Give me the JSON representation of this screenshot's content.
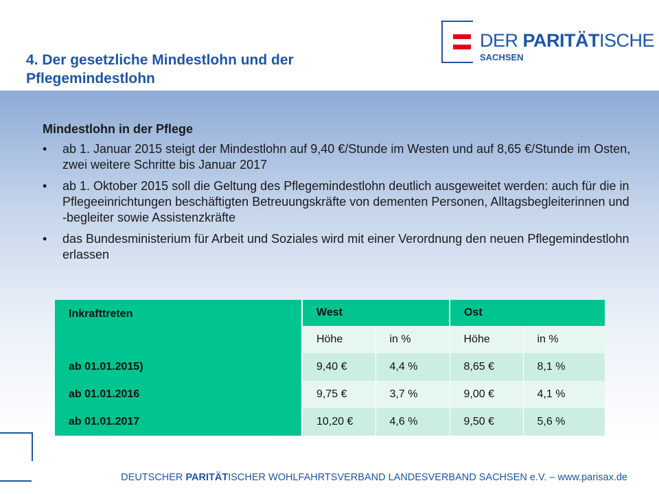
{
  "header": {
    "title_line1": "4. Der gesetzliche Mindestlohn und der",
    "title_line2": "Pflegemindestlohn"
  },
  "logo": {
    "name_regular": "DER ",
    "name_bold": "PARITÄT",
    "name_rest": "ISCHE",
    "sub": "SACHSEN",
    "accent_color": "#e3001b",
    "brand_color": "#1e55a4"
  },
  "content": {
    "subheading": "Mindestlohn in der Pflege",
    "bullets": [
      "ab 1. Januar 2015 steigt der Mindestlohn auf 9,40 €/Stunde im Westen und auf 8,65 €/Stunde im Osten, zwei weitere Schritte bis Januar 2017",
      "ab 1. Oktober 2015 soll die Geltung des Pflegemindestlohn deutlich ausgeweitet werden: auch für die in Pflegeeinrichtungen beschäftigten Betreuungskräfte von dementen Personen, Alltagsbegleiterinnen und -begleiter sowie Assistenzkräfte",
      "das Bundesministerium für Arbeit und Soziales wird mit einer Verordnung den neuen Pflegemindestlohn erlassen"
    ],
    "bullet_char": "•"
  },
  "table": {
    "header": {
      "col_label": "Inkrafttreten",
      "west": "West",
      "ost": "Ost",
      "sub": [
        "Höhe",
        "in %",
        "Höhe",
        "in %"
      ]
    },
    "rows": [
      {
        "label": "ab 01.01.2015)",
        "cells": [
          "9,40 €",
          "4,4 %",
          "8,65 €",
          "8,1 %"
        ]
      },
      {
        "label": "ab 01.01.2016",
        "cells": [
          "9,75 €",
          "3,7 %",
          "9,00 €",
          "4,1 %"
        ]
      },
      {
        "label": "ab 01.01.2017",
        "cells": [
          "10,20 €",
          "4,6 %",
          "9,50 €",
          "5,6 %"
        ]
      }
    ],
    "colors": {
      "header": "#00c48f",
      "row_light": "#e6f7f0",
      "row_mid": "#cceee2"
    }
  },
  "footer": {
    "text_before": "DEUTSCHER ",
    "text_bold": "PARITÄT",
    "text_after": "ISCHER WOHLFAHRTSVERBAND LANDESVERBAND SACHSEN e.V. – www.parisax.de"
  }
}
